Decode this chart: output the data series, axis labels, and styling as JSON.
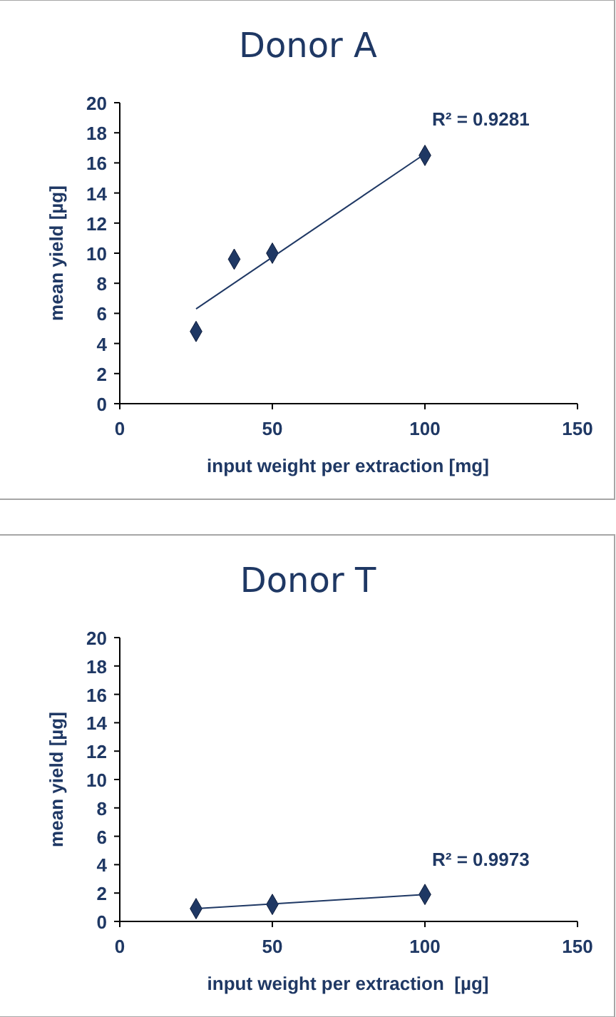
{
  "chart_data": [
    {
      "type": "scatter",
      "title": "Donor A",
      "xlabel": "input weight per extraction [mg]",
      "ylabel": "mean yield [µg]",
      "xlim": [
        0,
        150
      ],
      "xticks": [
        0,
        50,
        100,
        150
      ],
      "ylim": [
        0,
        20
      ],
      "yticks": [
        0,
        2,
        4,
        6,
        8,
        10,
        12,
        14,
        16,
        18,
        20
      ],
      "annotations": [
        "R² = 0.9281"
      ],
      "series": [
        {
          "color": "#1f3864",
          "marker": "diamond",
          "x": [
            25,
            37.5,
            50,
            100
          ],
          "values": [
            4.8,
            9.6,
            10.0,
            16.5
          ]
        },
        {
          "type": "line",
          "color": "#1f3864",
          "x": [
            25,
            100
          ],
          "values": [
            6.3,
            16.6
          ]
        }
      ]
    },
    {
      "type": "scatter",
      "title": "Donor T",
      "xlabel": "input weight per extraction  [µg]",
      "ylabel": "mean yield [µg]",
      "xlim": [
        0,
        150
      ],
      "xticks": [
        0,
        50,
        100,
        150
      ],
      "ylim": [
        0,
        20
      ],
      "yticks": [
        0,
        2,
        4,
        6,
        8,
        10,
        12,
        14,
        16,
        18,
        20
      ],
      "annotations": [
        "R² = 0.9973"
      ],
      "series": [
        {
          "color": "#1f3864",
          "marker": "diamond",
          "x": [
            25,
            50,
            100
          ],
          "values": [
            0.9,
            1.2,
            1.9
          ]
        },
        {
          "type": "line",
          "color": "#1f3864",
          "x": [
            25,
            100
          ],
          "values": [
            0.9,
            1.9
          ]
        }
      ]
    }
  ]
}
